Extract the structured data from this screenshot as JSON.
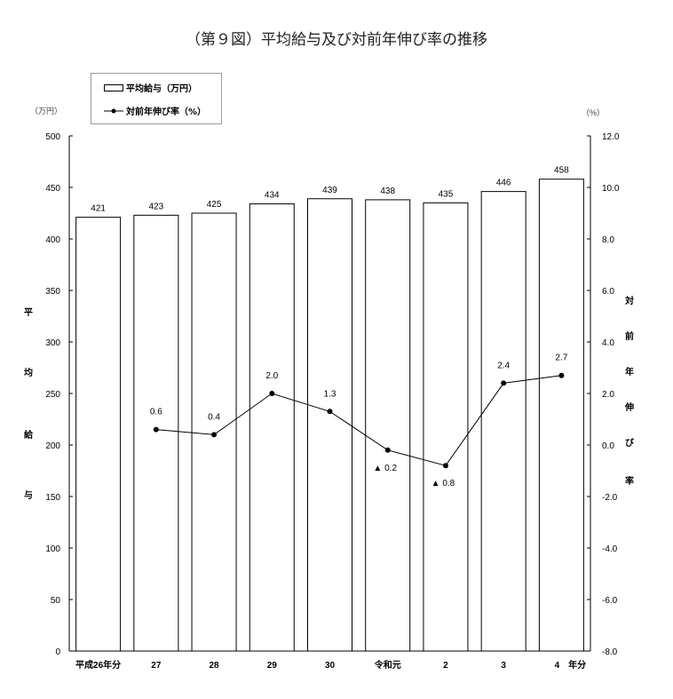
{
  "title": "（第９図）平均給与及び対前年伸び率の推移",
  "legend": {
    "bar": "平均給与（万円）",
    "line": "対前年伸び率（%）"
  },
  "chart_data": {
    "type": "bar+line",
    "title": "（第９図）平均給与及び対前年伸び率の推移",
    "categories": [
      "平成26年分",
      "27",
      "28",
      "29",
      "30",
      "令和元",
      "2",
      "3",
      "4　年分"
    ],
    "series": [
      {
        "name": "平均給与（万円）",
        "type": "bar",
        "axis": "left",
        "values": [
          421,
          423,
          425,
          434,
          439,
          438,
          435,
          446,
          458
        ],
        "labels": [
          "421",
          "423",
          "425",
          "434",
          "439",
          "438",
          "435",
          "446",
          "458"
        ]
      },
      {
        "name": "対前年伸び率（%）",
        "type": "line",
        "axis": "right",
        "values": [
          null,
          0.6,
          0.4,
          2.0,
          1.3,
          -0.2,
          -0.8,
          2.4,
          2.7
        ],
        "labels": [
          "",
          "0.6",
          "0.4",
          "2.0",
          "1.3",
          "▲ 0.2",
          "▲ 0.8",
          "2.4",
          "2.7"
        ]
      }
    ],
    "left_axis": {
      "unit": "（万円）",
      "label": [
        "平",
        "均",
        "給",
        "与"
      ],
      "ylim": [
        0,
        500
      ],
      "ticks": [
        "0",
        "50",
        "100",
        "150",
        "200",
        "250",
        "300",
        "350",
        "400",
        "450",
        "500"
      ]
    },
    "right_axis": {
      "unit": "（%）",
      "label": [
        "対",
        "前",
        "年",
        "伸",
        "び",
        "率"
      ],
      "ylim": [
        -8,
        12
      ],
      "ticks": [
        "-8.0",
        "-6.0",
        "-4.0",
        "-2.0",
        "0.0",
        "2.0",
        "4.0",
        "6.0",
        "8.0",
        "10.0",
        "12.0"
      ]
    },
    "grid": false,
    "legend_position": "top-left"
  }
}
